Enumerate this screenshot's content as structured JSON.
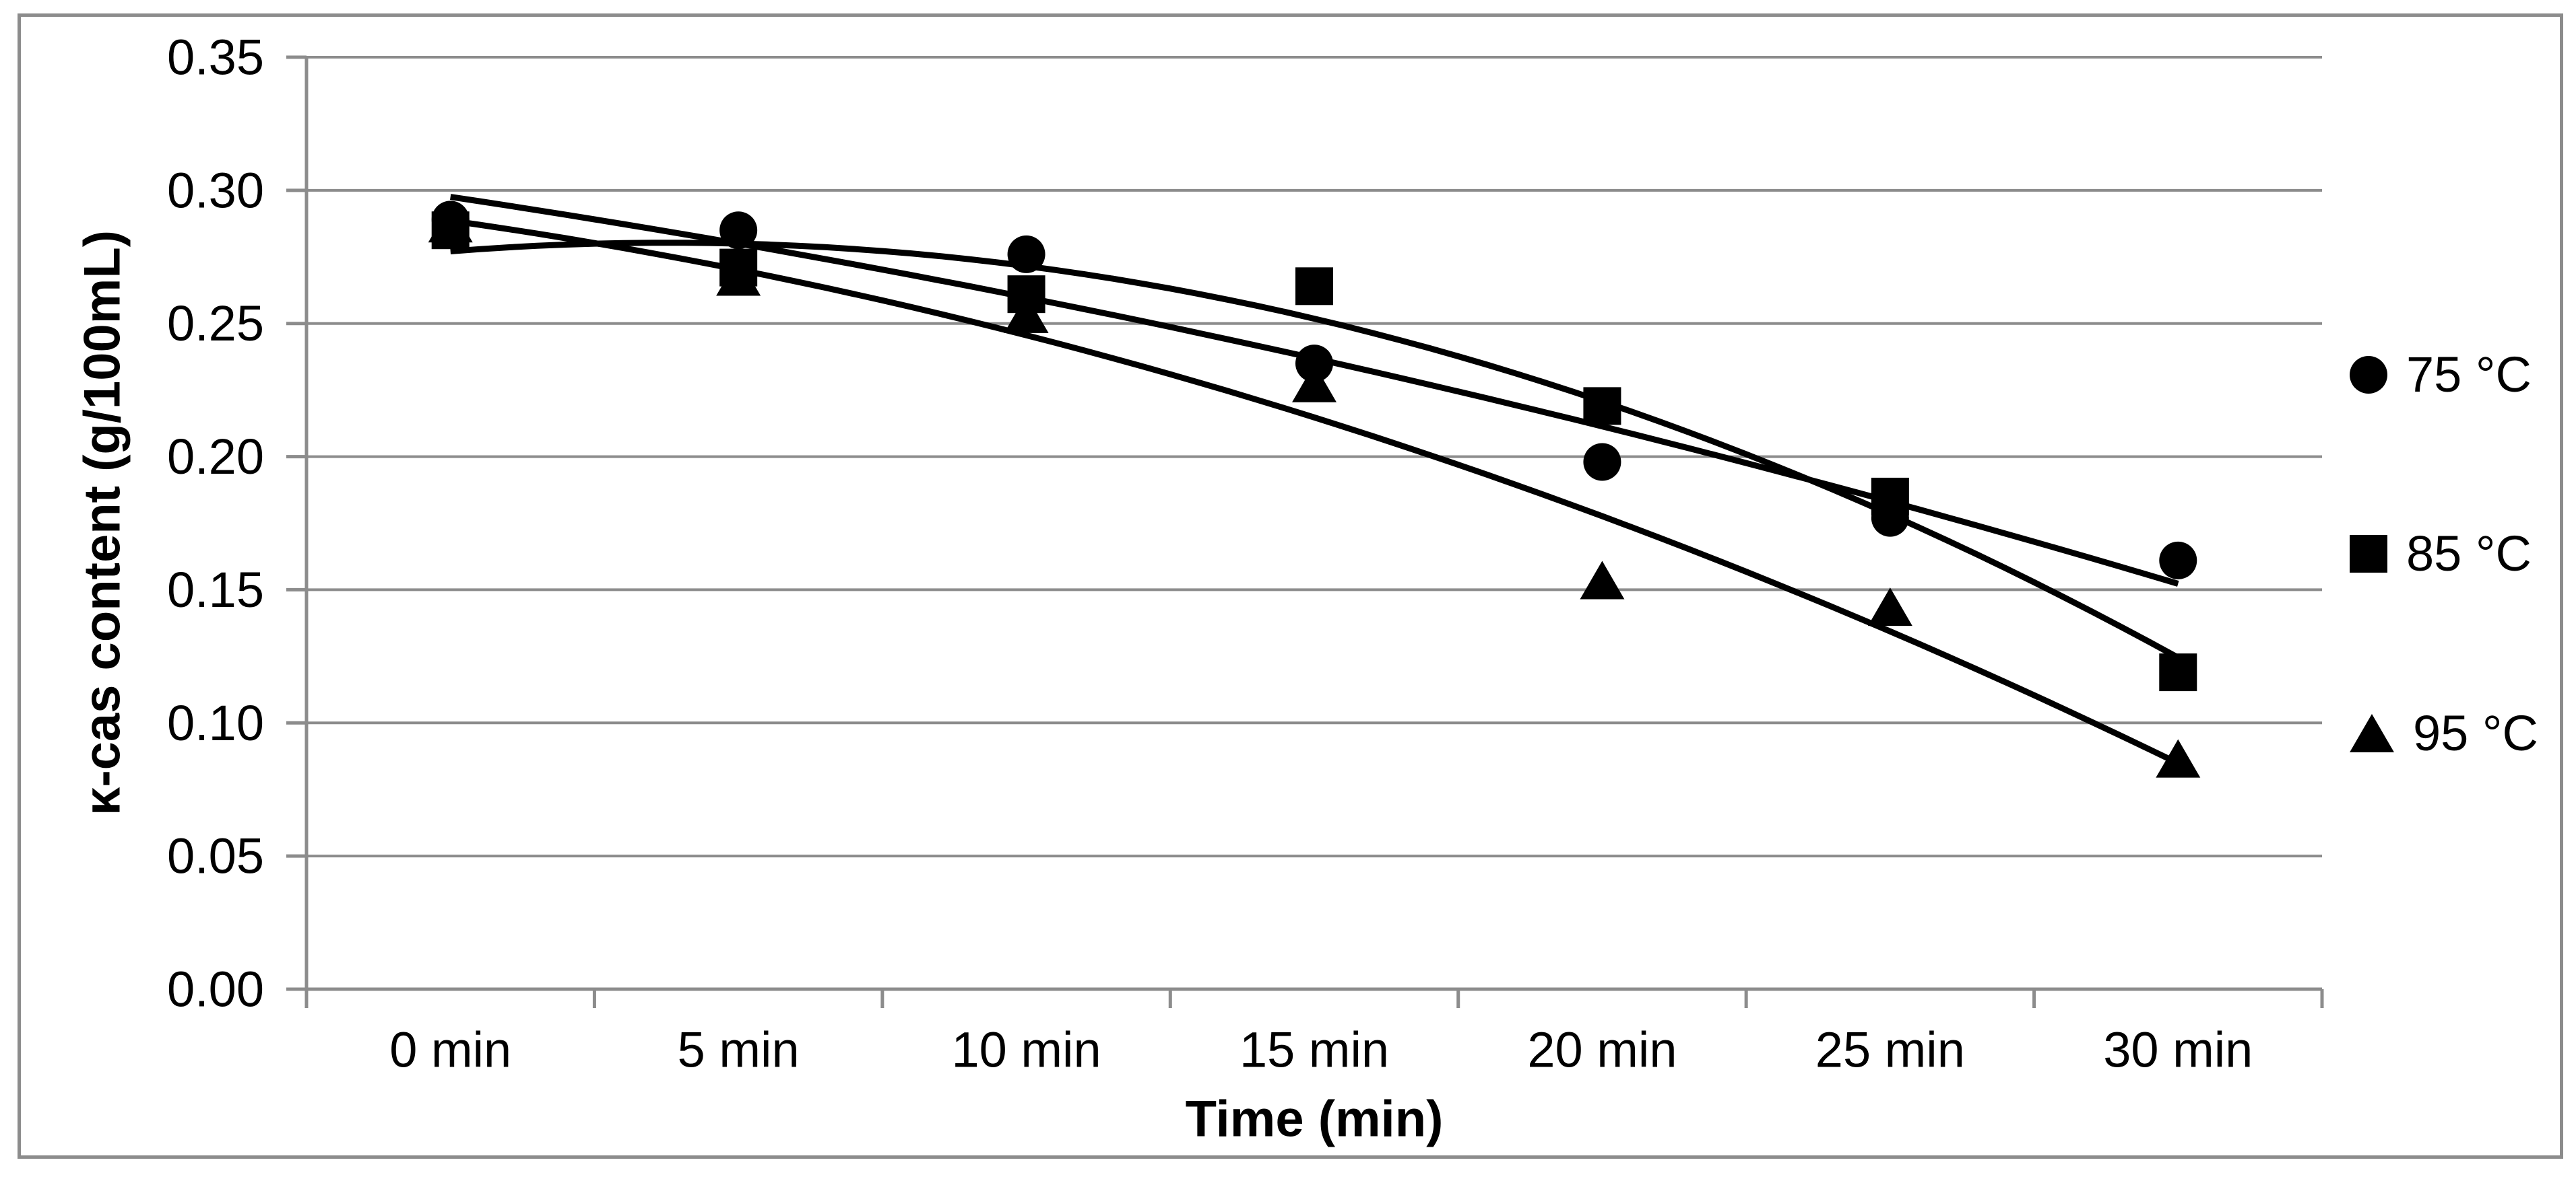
{
  "chart_data": {
    "type": "scatter",
    "title": "",
    "xlabel": "Time (min)",
    "ylabel": "κ-cas content (g/100mL)",
    "categories": [
      "0 min",
      "5 min",
      "10 min",
      "15 min",
      "20 min",
      "25 min",
      "30 min"
    ],
    "x_minutes": [
      0,
      5,
      10,
      15,
      20,
      25,
      30
    ],
    "ylim": [
      0,
      0.35
    ],
    "ytick_step": 0.05,
    "ytick_labels": [
      "0.00",
      "0.05",
      "0.10",
      "0.15",
      "0.20",
      "0.25",
      "0.30",
      "0.35"
    ],
    "grid": "horizontal-major",
    "legend_position": "right",
    "trendline": "quadratic-least-squares",
    "series": [
      {
        "name": "75 °C",
        "marker": "circle",
        "values": [
          0.289,
          0.285,
          0.276,
          0.235,
          0.198,
          0.177,
          0.161
        ]
      },
      {
        "name": "85 °C",
        "marker": "square",
        "values": [
          0.285,
          0.271,
          0.261,
          0.264,
          0.219,
          0.185,
          0.119
        ]
      },
      {
        "name": "95 °C",
        "marker": "triangle",
        "values": [
          0.287,
          0.267,
          0.253,
          0.227,
          0.153,
          0.143,
          0.086
        ]
      }
    ],
    "colors": {
      "series": "#000000",
      "gridline": "#8C8C8C",
      "axis": "#8C8C8C",
      "frame_border": "#8C8C8C",
      "background": "#FFFFFF",
      "text": "#000000"
    }
  }
}
